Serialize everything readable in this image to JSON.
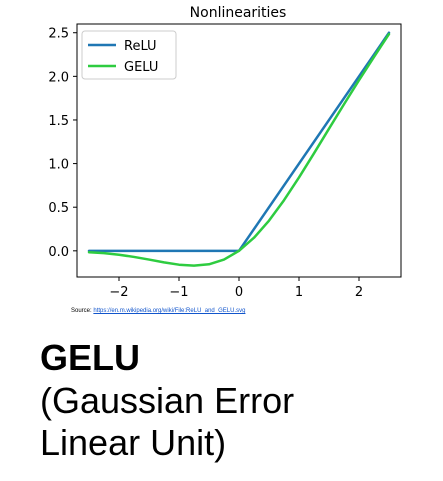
{
  "chart_data": {
    "type": "line",
    "title": "Nonlinearities",
    "xlabel": "",
    "ylabel": "",
    "xlim": [
      -2.7,
      2.7
    ],
    "ylim": [
      -0.3,
      2.6
    ],
    "xticks": [
      -2,
      -1,
      0,
      1,
      2
    ],
    "xtick_labels": [
      "−2",
      "−1",
      "0",
      "1",
      "2"
    ],
    "yticks": [
      0.0,
      0.5,
      1.0,
      1.5,
      2.0,
      2.5
    ],
    "ytick_labels": [
      "0.0",
      "0.5",
      "1.0",
      "1.5",
      "2.0",
      "2.5"
    ],
    "grid": false,
    "legend": "top-left",
    "series": [
      {
        "name": "ReLU",
        "color": "#1f77b4",
        "x": [
          -2.5,
          0.0,
          2.5
        ],
        "y": [
          0.0,
          0.0,
          2.5
        ]
      },
      {
        "name": "GELU",
        "color": "#2ecc40",
        "x": [
          -2.5,
          -2.25,
          -2.0,
          -1.75,
          -1.5,
          -1.25,
          -1.0,
          -0.75,
          -0.5,
          -0.25,
          0.0,
          0.25,
          0.5,
          0.75,
          1.0,
          1.25,
          1.5,
          1.75,
          2.0,
          2.25,
          2.5
        ],
        "y": [
          -0.016,
          -0.027,
          -0.045,
          -0.07,
          -0.1,
          -0.132,
          -0.159,
          -0.17,
          -0.154,
          -0.1,
          0.0,
          0.15,
          0.346,
          0.58,
          0.841,
          1.118,
          1.4,
          1.68,
          1.955,
          2.223,
          2.484
        ]
      }
    ]
  },
  "source": {
    "label": "Source:",
    "link_text": "https://en.m.wikipedia.org/wiki/File:ReLU_and_GELU.svg"
  },
  "heading": {
    "title": "GELU",
    "line1": "(Gaussian Error",
    "line2": "Linear Unit)"
  }
}
